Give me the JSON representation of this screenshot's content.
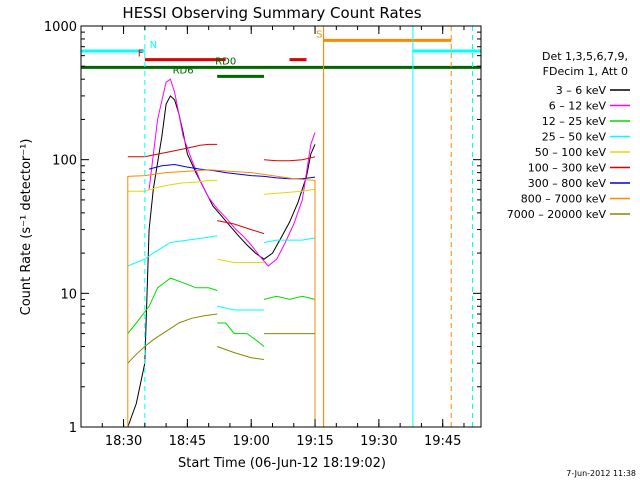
{
  "chart_data": {
    "type": "line",
    "title": "HESSI Observing Summary Count Rates",
    "ylabel": "Count Rate (s⁻¹ detector⁻¹)",
    "xlabel": "Start Time (06-Jun-12 18:19:02)",
    "timestamp": "7-Jun-2012 11:38",
    "y_scale": "log",
    "ylim": [
      1,
      1000
    ],
    "y_ticks": [
      {
        "value": 1,
        "label": "1"
      },
      {
        "value": 10,
        "label": "10"
      },
      {
        "value": 100,
        "label": "100"
      },
      {
        "value": 1000,
        "label": "1000"
      }
    ],
    "x_range_minutes": [
      "18:20",
      "19:54"
    ],
    "x_ticks": [
      {
        "t": "18:30",
        "label": "18:30"
      },
      {
        "t": "18:45",
        "label": "18:45"
      },
      {
        "t": "19:00",
        "label": "19:00"
      },
      {
        "t": "19:15",
        "label": "19:15"
      },
      {
        "t": "19:30",
        "label": "19:30"
      },
      {
        "t": "19:45",
        "label": "19:45"
      }
    ],
    "legend": {
      "placement": "right",
      "header": [
        "Det 1,3,5,6,7,9,",
        "FDecim 1, Att 0"
      ],
      "entries": [
        {
          "label": "3 – 6 keV",
          "color": "#000000"
        },
        {
          "label": "6 – 12 keV",
          "color": "#ff00ff"
        },
        {
          "label": "12 – 25 keV",
          "color": "#00dd00"
        },
        {
          "label": "25 – 50 keV",
          "color": "#00ffff"
        },
        {
          "label": "50 – 100 keV",
          "color": "#dddd00"
        },
        {
          "label": "100 – 300 keV",
          "color": "#dd0000"
        },
        {
          "label": "300 – 800 keV",
          "color": "#0000ee"
        },
        {
          "label": "800 – 7000 keV",
          "color": "#ff8800"
        },
        {
          "label": "7000 – 20000 keV",
          "color": "#888800"
        }
      ]
    },
    "series": [
      {
        "name": "3 – 6 keV",
        "color": "#000000",
        "width": 1,
        "segments": [
          [
            [
              "18:31",
              1
            ],
            [
              "18:33",
              1.5
            ],
            [
              "18:35",
              3
            ],
            [
              "18:36",
              30
            ],
            [
              "18:37",
              60
            ],
            [
              "18:39",
              150
            ],
            [
              "18:40",
              260
            ],
            [
              "18:41",
              300
            ],
            [
              "18:42",
              280
            ],
            [
              "18:43",
              220
            ],
            [
              "18:44",
              160
            ],
            [
              "18:45",
              110
            ],
            [
              "18:47",
              80
            ],
            [
              "18:49",
              60
            ],
            [
              "18:51",
              45
            ],
            [
              "18:53",
              38
            ],
            [
              "18:55",
              32
            ],
            [
              "18:57",
              27
            ],
            [
              "18:59",
              23
            ],
            [
              "19:01",
              20
            ],
            [
              "19:03",
              18
            ],
            [
              "19:05",
              20
            ],
            [
              "19:07",
              26
            ],
            [
              "19:09",
              34
            ],
            [
              "19:11",
              48
            ],
            [
              "19:13",
              75
            ],
            [
              "19:14",
              110
            ],
            [
              "19:15",
              130
            ]
          ]
        ]
      },
      {
        "name": "6 – 12 keV",
        "color": "#ff00ff",
        "width": 1,
        "segments": [
          [
            [
              "18:36",
              60
            ],
            [
              "18:38",
              200
            ],
            [
              "18:40",
              380
            ],
            [
              "18:41",
              400
            ],
            [
              "18:42",
              320
            ],
            [
              "18:43",
              220
            ],
            [
              "18:44",
              150
            ],
            [
              "18:46",
              100
            ],
            [
              "18:48",
              70
            ],
            [
              "18:50",
              52
            ],
            [
              "18:52",
              43
            ],
            [
              "18:54",
              37
            ],
            [
              "18:56",
              31
            ],
            [
              "18:58",
              27
            ],
            [
              "19:00",
              23
            ],
            [
              "19:02",
              19
            ],
            [
              "19:04",
              16
            ],
            [
              "19:06",
              18
            ],
            [
              "19:08",
              24
            ],
            [
              "19:10",
              33
            ],
            [
              "19:12",
              50
            ],
            [
              "19:13",
              80
            ],
            [
              "19:14",
              130
            ],
            [
              "19:15",
              160
            ]
          ]
        ]
      },
      {
        "name": "12 – 25 keV",
        "color": "#00dd00",
        "width": 1,
        "segments": [
          [
            [
              "18:31",
              5
            ],
            [
              "18:33",
              6
            ],
            [
              "18:36",
              8
            ],
            [
              "18:38",
              11
            ],
            [
              "18:41",
              13
            ],
            [
              "18:44",
              12
            ],
            [
              "18:47",
              11
            ],
            [
              "18:50",
              11
            ],
            [
              "18:52",
              10.5
            ]
          ],
          [
            [
              "18:52",
              6
            ],
            [
              "18:54",
              6
            ],
            [
              "18:56",
              5
            ],
            [
              "18:59",
              5
            ],
            [
              "19:01",
              4.5
            ],
            [
              "19:03",
              4
            ]
          ],
          [
            [
              "19:03",
              9
            ],
            [
              "19:06",
              9.5
            ],
            [
              "19:09",
              9
            ],
            [
              "19:12",
              9.5
            ],
            [
              "19:15",
              9
            ]
          ]
        ]
      },
      {
        "name": "25 – 50 keV",
        "color": "#00ffff",
        "width": 1,
        "segments": [
          [
            [
              "18:31",
              16
            ],
            [
              "18:33",
              17
            ],
            [
              "18:35",
              18
            ],
            [
              "18:37",
              20
            ],
            [
              "18:41",
              24
            ],
            [
              "18:45",
              25
            ],
            [
              "18:49",
              26
            ],
            [
              "18:52",
              27
            ]
          ],
          [
            [
              "18:52",
              8
            ],
            [
              "18:56",
              7.5
            ],
            [
              "19:00",
              7.5
            ],
            [
              "19:03",
              7.5
            ]
          ],
          [
            [
              "19:03",
              24
            ],
            [
              "19:06",
              25
            ],
            [
              "19:09",
              25
            ],
            [
              "19:12",
              25
            ],
            [
              "19:15",
              26
            ]
          ]
        ]
      },
      {
        "name": "50 – 100 keV",
        "color": "#dddd00",
        "width": 1,
        "segments": [
          [
            [
              "18:31",
              58
            ],
            [
              "18:35",
              58
            ],
            [
              "18:38",
              62
            ],
            [
              "18:41",
              65
            ],
            [
              "18:44",
              67
            ],
            [
              "18:47",
              68
            ],
            [
              "18:50",
              70
            ],
            [
              "18:52",
              70
            ]
          ],
          [
            [
              "18:52",
              18
            ],
            [
              "18:56",
              17
            ],
            [
              "19:00",
              17
            ],
            [
              "19:03",
              17
            ]
          ],
          [
            [
              "19:03",
              55
            ],
            [
              "19:06",
              56
            ],
            [
              "19:09",
              57
            ],
            [
              "19:12",
              58
            ],
            [
              "19:15",
              60
            ]
          ]
        ]
      },
      {
        "name": "100 – 300 keV",
        "color": "#dd0000",
        "width": 1,
        "segments": [
          [
            [
              "18:31",
              105
            ],
            [
              "18:35",
              105
            ],
            [
              "18:38",
              110
            ],
            [
              "18:41",
              115
            ],
            [
              "18:45",
              122
            ],
            [
              "18:48",
              128
            ],
            [
              "18:50",
              130
            ],
            [
              "18:52",
              130
            ]
          ],
          [
            [
              "18:52",
              35
            ],
            [
              "18:56",
              33
            ],
            [
              "19:00",
              30
            ],
            [
              "19:03",
              28
            ]
          ],
          [
            [
              "19:03",
              100
            ],
            [
              "19:06",
              98
            ],
            [
              "19:09",
              98
            ],
            [
              "19:12",
              100
            ],
            [
              "19:15",
              105
            ]
          ]
        ]
      },
      {
        "name": "300 – 800 keV",
        "color": "#0000ee",
        "width": 1,
        "segments": [
          [
            [
              "18:36",
              85
            ],
            [
              "18:39",
              90
            ],
            [
              "18:42",
              92
            ],
            [
              "18:45",
              88
            ],
            [
              "18:48",
              85
            ],
            [
              "18:51",
              83
            ],
            [
              "18:54",
              80
            ],
            [
              "18:57",
              78
            ],
            [
              "19:00",
              76
            ],
            [
              "19:03",
              75
            ],
            [
              "19:06",
              73
            ],
            [
              "19:09",
              72
            ],
            [
              "19:12",
              72
            ],
            [
              "19:15",
              74
            ]
          ]
        ]
      },
      {
        "name": "800 – 7000 keV",
        "color": "#ff8800",
        "width": 1,
        "segments": [
          [
            [
              "18:31",
              1
            ],
            [
              "18:31",
              75
            ],
            [
              "18:35",
              76
            ],
            [
              "18:40",
              80
            ],
            [
              "18:45",
              82
            ],
            [
              "18:50",
              84
            ],
            [
              "18:55",
              82
            ],
            [
              "19:00",
              80
            ],
            [
              "19:05",
              76
            ],
            [
              "19:10",
              72
            ],
            [
              "19:15",
              70
            ],
            [
              "19:15",
              1
            ]
          ],
          [
            [
              "19:17",
              1
            ],
            [
              "19:17",
              1000
            ]
          ]
        ]
      },
      {
        "name": "7000 – 20000 keV",
        "color": "#888800",
        "width": 1,
        "segments": [
          [
            [
              "18:31",
              3
            ],
            [
              "18:33",
              3.5
            ],
            [
              "18:35",
              4
            ],
            [
              "18:37",
              4.5
            ],
            [
              "18:40",
              5.2
            ],
            [
              "18:43",
              6
            ],
            [
              "18:46",
              6.5
            ],
            [
              "18:49",
              6.8
            ],
            [
              "18:52",
              7
            ]
          ],
          [
            [
              "18:52",
              4
            ],
            [
              "18:56",
              3.6
            ],
            [
              "19:00",
              3.3
            ],
            [
              "19:03",
              3.2
            ]
          ],
          [
            [
              "19:03",
              5
            ],
            [
              "19:06",
              5
            ],
            [
              "19:09",
              5
            ],
            [
              "19:12",
              5
            ],
            [
              "19:15",
              5
            ]
          ]
        ]
      }
    ],
    "flag_bars": [
      {
        "label": "N",
        "color": "#00ffff",
        "label_color": "#00ffff",
        "label_at": "18:37",
        "value": 650,
        "ranges": [
          [
            "18:20",
            "18:35"
          ],
          [
            "19:38",
            "19:54"
          ]
        ]
      },
      {
        "label": "S",
        "color": "#ff8800",
        "label_color": "#ff8800",
        "label_at": "19:16",
        "value": 780,
        "ranges": [
          [
            "19:17",
            "19:47"
          ]
        ]
      },
      {
        "label": "F",
        "color": "#dd0000",
        "label_color": "#dd0000",
        "label_at": "18:34",
        "value": 560,
        "ranges": [
          [
            "18:35",
            "18:54"
          ],
          [
            "19:09",
            "19:13"
          ]
        ]
      },
      {
        "label": "RD0",
        "color": "#006600",
        "label_color": "#006600",
        "label_at": "18:54",
        "value": 490,
        "ranges": [
          [
            "18:20",
            "19:54"
          ]
        ]
      },
      {
        "label": "RD6",
        "color": "#006600",
        "label_color": "#006600",
        "label_at": "18:44",
        "value": 420,
        "ranges": [
          [
            "18:52",
            "19:03"
          ]
        ]
      }
    ],
    "vertical_markers": [
      {
        "t": "18:20",
        "color": "#00ffff",
        "style": "solid"
      },
      {
        "t": "18:35",
        "color": "#00ffff",
        "style": "dashed"
      },
      {
        "t": "19:17",
        "color": "#ff8800",
        "style": "solid"
      },
      {
        "t": "19:38",
        "color": "#00ffff",
        "style": "solid"
      },
      {
        "t": "19:47",
        "color": "#ff8800",
        "style": "dashed"
      },
      {
        "t": "19:52",
        "color": "#00ffff",
        "style": "dashed"
      }
    ]
  }
}
